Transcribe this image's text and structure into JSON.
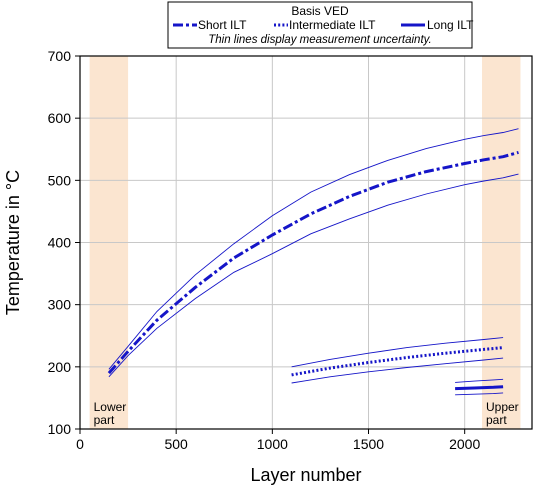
{
  "chart_data": {
    "type": "line",
    "xlabel": "Layer number",
    "ylabel": "Temperature in °C",
    "xlim": [
      0,
      2350
    ],
    "ylim": [
      100,
      700
    ],
    "xticks": [
      0,
      500,
      1000,
      1500,
      2000
    ],
    "yticks": [
      100,
      200,
      300,
      400,
      500,
      600,
      700
    ],
    "grid": true,
    "legend": {
      "placement": "top-center",
      "title": "Basis VED",
      "note": "Thin lines display measurement uncertainty.",
      "entries": [
        "Short ILT",
        "Intermediate ILT",
        "Long ILT"
      ]
    },
    "regions": [
      {
        "label_lines": [
          "Lower",
          "part"
        ],
        "x_start": 50,
        "x_end": 250,
        "color": "#fbe5d0"
      },
      {
        "label_lines": [
          "Upper",
          "part"
        ],
        "x_start": 2090,
        "x_end": 2290,
        "color": "#fbe5d0"
      }
    ],
    "series_color": "#1515c8",
    "series": [
      {
        "name": "Short ILT",
        "style": "dashdot",
        "x": [
          150,
          250,
          400,
          600,
          800,
          1000,
          1200,
          1400,
          1600,
          1800,
          2000,
          2100,
          2200,
          2280
        ],
        "y": [
          190,
          225,
          275,
          328,
          375,
          412,
          446,
          474,
          497,
          514,
          527,
          533,
          538,
          545
        ],
        "upper": [
          196,
          233,
          289,
          348,
          398,
          443,
          481,
          509,
          532,
          551,
          566,
          572,
          577,
          583
        ],
        "lower": [
          184,
          218,
          262,
          310,
          352,
          382,
          414,
          438,
          460,
          478,
          493,
          499,
          504,
          510
        ]
      },
      {
        "name": "Intermediate ILT",
        "style": "dotted",
        "x": [
          1100,
          1300,
          1500,
          1700,
          1900,
          2100,
          2200
        ],
        "y": [
          187,
          198,
          207,
          215,
          222,
          228,
          231
        ],
        "upper": [
          200,
          212,
          222,
          231,
          238,
          244,
          247
        ],
        "lower": [
          174,
          184,
          192,
          199,
          205,
          211,
          214
        ]
      },
      {
        "name": "Long ILT",
        "style": "solid",
        "x": [
          1950,
          2050,
          2150,
          2200
        ],
        "y": [
          165,
          166,
          167,
          168
        ],
        "upper": [
          175,
          177,
          179,
          180
        ],
        "lower": [
          155,
          156,
          157,
          158
        ]
      }
    ]
  }
}
